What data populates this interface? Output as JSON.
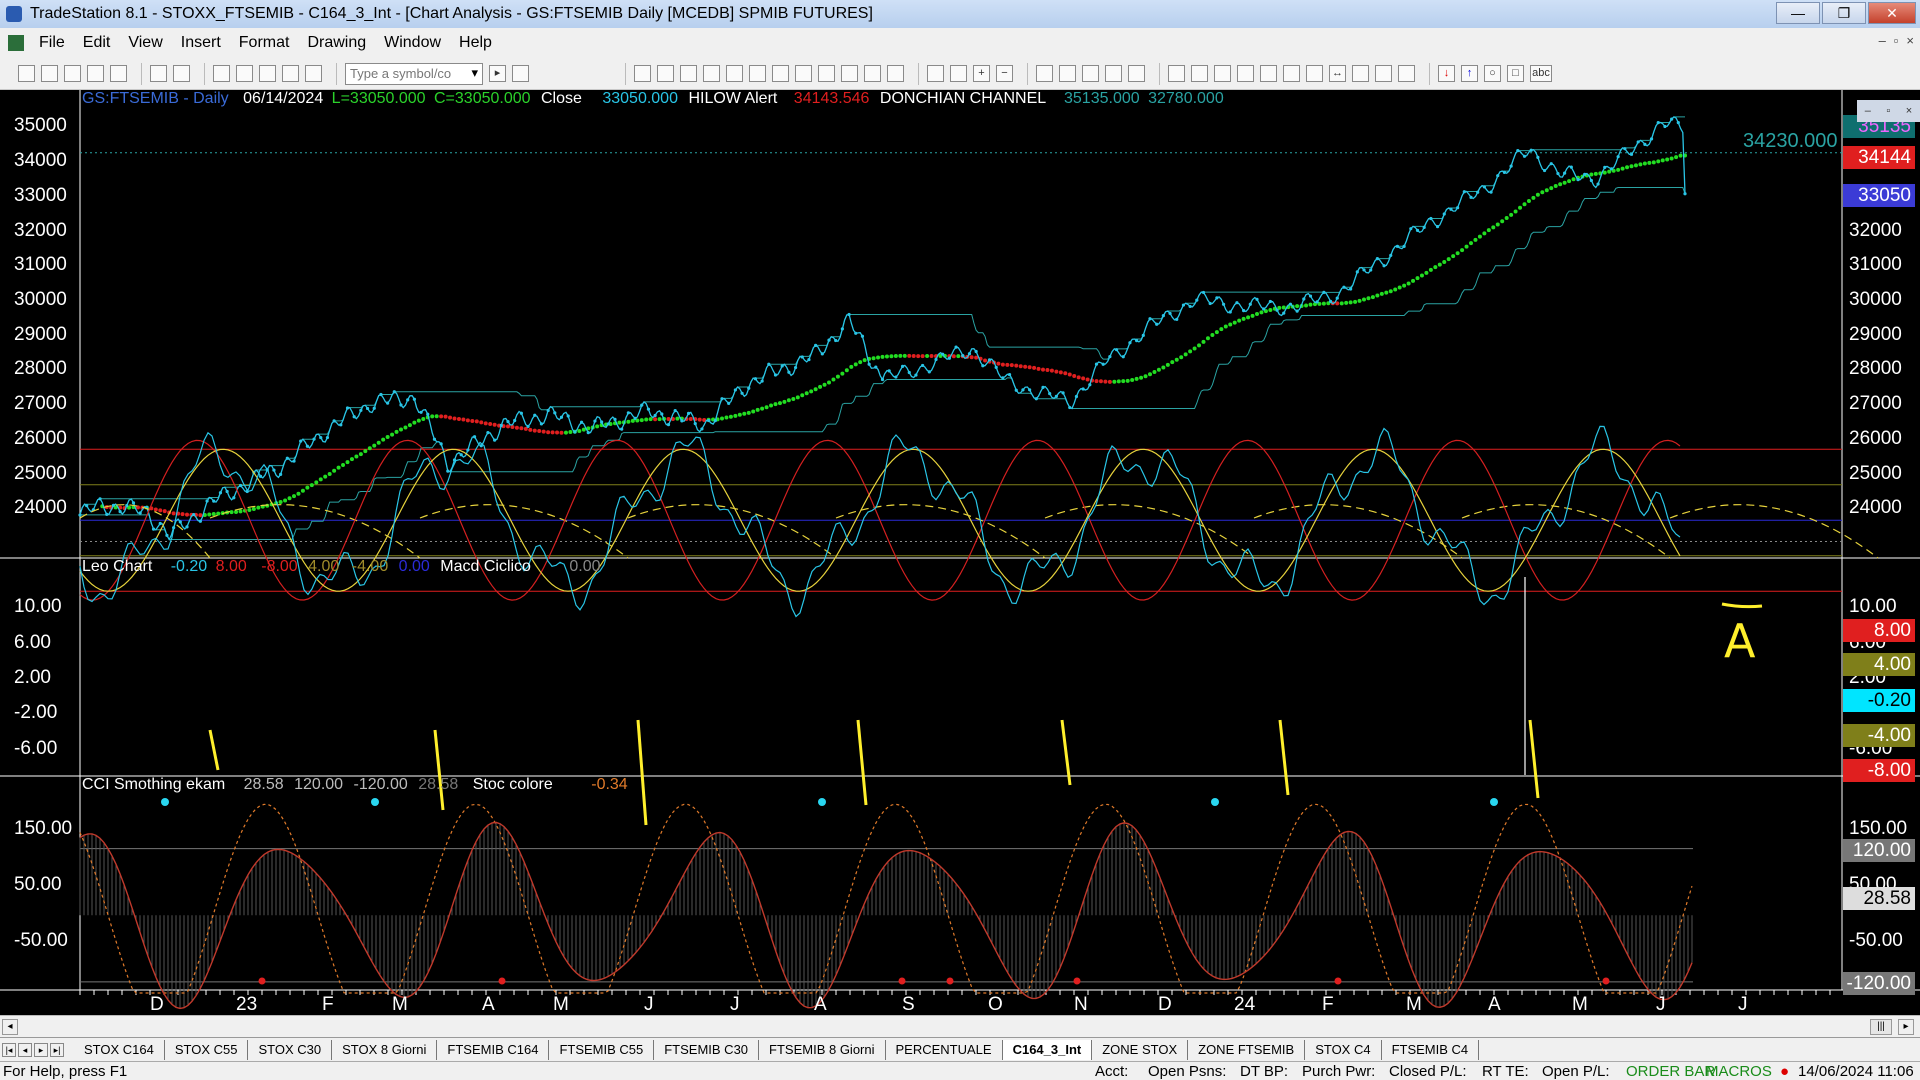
{
  "window": {
    "title": "TradeStation 8.1 - STOXX_FTSEMIB - C164_3_Int - [Chart Analysis - GS:FTSEMIB  Daily  [MCEDB] SPMIB FUTURES]",
    "min": "—",
    "max": "❐",
    "close": "✕"
  },
  "menu": [
    "File",
    "Edit",
    "View",
    "Insert",
    "Format",
    "Drawing",
    "Window",
    "Help"
  ],
  "toolbar": {
    "symbol_placeholder": "Type a symbol/co"
  },
  "price_panel": {
    "symbol": "GS:FTSEMIB - Daily",
    "date": "06/14/2024",
    "low": "L=33050.000",
    "close": "C=33050.000",
    "close_label": "Close",
    "close_value": "33050.000",
    "hilow_label": "HILOW Alert",
    "hilow_value": "34143.546",
    "donchian_label": "DONCHIAN CHANNEL",
    "donchian_upper": "35135.000",
    "donchian_lower": "32780.000",
    "y_ticks": [
      "35000",
      "34000",
      "33000",
      "32000",
      "31000",
      "30000",
      "29000",
      "28000",
      "27000",
      "26000",
      "25000",
      "24000"
    ],
    "right_ticks": [
      "32000",
      "31000",
      "30000",
      "29000",
      "28000",
      "27000",
      "26000",
      "25000",
      "24000"
    ],
    "tag_hline": "34230.000",
    "tag_hilow": "34144",
    "tag_last": "33050",
    "tag_top": "35135"
  },
  "leo_panel": {
    "name": "Leo Chart",
    "v1": "-0.20",
    "v2": "8.00",
    "v3": "-8.00",
    "v4": "4.00",
    "v5": "-4.00",
    "v6": "0.00",
    "macd_label": "Macd Ciclico",
    "macd_value": "0.00",
    "y_ticks": [
      "10.00",
      "6.00",
      "2.00",
      "-2.00",
      "-6.00"
    ],
    "right_ticks": [
      "10.00",
      "6.00",
      "2.00",
      "-6.00"
    ],
    "tags": {
      "t8": "8.00",
      "t4": "4.00",
      "tm02": "-0.20",
      "tm4": "-4.00",
      "tm8": "-8.00"
    },
    "annotation_mark": "A"
  },
  "cci_panel": {
    "name": "CCI Smothing ekam",
    "v1": "28.58",
    "v2": "120.00",
    "v3": "-120.00",
    "v4": "28.58",
    "stoc_label": "Stoc colore",
    "stoc_value": "-0.34",
    "y_ticks": [
      "150.00",
      "50.00",
      "-50.00"
    ],
    "right_ticks": [
      "150.00",
      "50.00",
      "-50.00"
    ],
    "tags": {
      "t120": "120.00",
      "tcur": "28.58",
      "tm120": "-120.00"
    }
  },
  "x_axis": [
    "D",
    "23",
    "F",
    "M",
    "A",
    "M",
    "J",
    "J",
    "A",
    "S",
    "O",
    "N",
    "D",
    "24",
    "F",
    "M",
    "A",
    "M",
    "J",
    "J"
  ],
  "tabs": [
    "STOX C164",
    "STOX C55",
    "STOX  C30",
    "STOX  8 Giorni",
    "FTSEMIB C164",
    "FTSEMIB C55",
    "FTSEMIB C30",
    "FTSEMIB  8 Giorni",
    "PERCENTUALE",
    "C164_3_Int",
    "ZONE STOX",
    "ZONE FTSEMIB",
    "STOX  C4",
    "FTSEMIB C4"
  ],
  "active_tab": "C164_3_Int",
  "status": {
    "help": "For Help, press F1",
    "acct": "Acct:",
    "open_psns": "Open Psns:",
    "dt_bp": "DT BP:",
    "purch_pwr": "Purch Pwr:",
    "closed_pl": "Closed P/L:",
    "rt_te": "RT TE:",
    "open_pl": "Open P/L:",
    "order_bar": "ORDER BAR",
    "macros": "MACROS",
    "datetime": "14/06/2024 11:06"
  },
  "colors": {
    "price": "#29c5e6",
    "ma_up": "#22dd22",
    "ma_down": "#e01f1f",
    "donchian": "#2aa3a3",
    "cycle": "#e6d23c",
    "cci_line": "#c0392b",
    "stoc": "#e07a2a",
    "background": "#000000"
  }
}
